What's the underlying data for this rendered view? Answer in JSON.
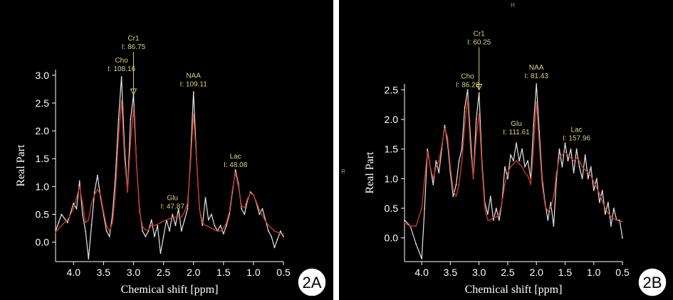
{
  "figure": {
    "divider_color": "#ffffff",
    "background": "#000000",
    "axis_color": "#ffffff",
    "measured_color": "#e6e6e6",
    "fit_color": "#c0392b",
    "annotation_color": "#d9d27a"
  },
  "chart_data": [
    {
      "type": "line",
      "panel_label": "2A",
      "xlabel": "Chemical shift [ppm]",
      "ylabel": "Real Part",
      "xlim": [
        4.3,
        0.5
      ],
      "ylim": [
        -0.35,
        3.1
      ],
      "x_ticks": [
        "4.0",
        "3.5",
        "3.0",
        "2.5",
        "2.0",
        "1.5",
        "1.0",
        "0.5"
      ],
      "y_ticks": [
        "3.0",
        "2.5",
        "2.0",
        "1.5",
        "1.0",
        "0.5",
        "0.0"
      ],
      "y_tick_values": [
        3.0,
        2.5,
        2.0,
        1.5,
        1.0,
        0.5,
        0.0
      ],
      "x_tick_values": [
        4.0,
        3.5,
        3.0,
        2.5,
        2.0,
        1.5,
        1.0,
        0.5
      ],
      "grid": false,
      "annotations": [
        {
          "name": "Cho",
          "value": "I: 108.16",
          "ppm": 3.2,
          "y": 2.97
        },
        {
          "name": "Cr1",
          "value": "I: 86.75",
          "ppm": 3.0,
          "y": 2.6,
          "arrow": true
        },
        {
          "name": "NAA",
          "value": "I: 109.11",
          "ppm": 2.0,
          "y": 2.7
        },
        {
          "name": "Glu",
          "value": "I: 47.87",
          "ppm": 2.35,
          "y": 0.5
        },
        {
          "name": "Lac",
          "value": "I: 48.08",
          "ppm": 1.3,
          "y": 1.25
        }
      ],
      "series": [
        {
          "role": "measured",
          "x": [
            4.3,
            4.2,
            4.1,
            4.0,
            3.95,
            3.9,
            3.85,
            3.8,
            3.75,
            3.7,
            3.65,
            3.6,
            3.55,
            3.5,
            3.45,
            3.4,
            3.35,
            3.3,
            3.25,
            3.2,
            3.15,
            3.1,
            3.05,
            3.0,
            2.95,
            2.9,
            2.85,
            2.8,
            2.75,
            2.7,
            2.65,
            2.6,
            2.55,
            2.5,
            2.45,
            2.4,
            2.35,
            2.3,
            2.25,
            2.2,
            2.15,
            2.1,
            2.05,
            2.0,
            1.95,
            1.9,
            1.85,
            1.8,
            1.75,
            1.7,
            1.65,
            1.6,
            1.55,
            1.5,
            1.45,
            1.4,
            1.35,
            1.3,
            1.25,
            1.2,
            1.15,
            1.1,
            1.05,
            1.0,
            0.95,
            0.9,
            0.85,
            0.8,
            0.75,
            0.7,
            0.65,
            0.6,
            0.55,
            0.5
          ],
          "y": [
            0.2,
            0.5,
            0.35,
            0.7,
            0.6,
            1.1,
            0.5,
            0.2,
            -0.3,
            0.3,
            0.9,
            1.2,
            0.8,
            0.5,
            0.2,
            0.1,
            0.5,
            1.2,
            2.2,
            2.97,
            1.7,
            0.9,
            2.2,
            2.65,
            1.4,
            0.6,
            0.2,
            0.1,
            0.2,
            0.4,
            0.1,
            0.3,
            -0.2,
            0.1,
            0.4,
            0.2,
            0.5,
            0.3,
            0.6,
            0.2,
            0.4,
            0.6,
            1.5,
            2.7,
            1.5,
            0.6,
            0.3,
            0.8,
            0.4,
            0.5,
            0.3,
            0.2,
            0.3,
            0.15,
            0.3,
            0.5,
            0.9,
            1.3,
            1.05,
            0.6,
            0.5,
            0.75,
            0.9,
            0.85,
            0.7,
            0.5,
            0.6,
            0.4,
            0.2,
            0.1,
            -0.1,
            0.05,
            0.2,
            0.1
          ]
        },
        {
          "role": "fit",
          "x": [
            4.3,
            4.2,
            4.1,
            4.0,
            3.95,
            3.9,
            3.85,
            3.8,
            3.75,
            3.7,
            3.65,
            3.6,
            3.55,
            3.5,
            3.45,
            3.4,
            3.35,
            3.3,
            3.25,
            3.2,
            3.15,
            3.1,
            3.05,
            3.0,
            2.95,
            2.9,
            2.85,
            2.8,
            2.75,
            2.7,
            2.65,
            2.6,
            2.55,
            2.5,
            2.45,
            2.4,
            2.35,
            2.3,
            2.25,
            2.2,
            2.15,
            2.1,
            2.05,
            2.0,
            1.95,
            1.9,
            1.85,
            1.8,
            1.75,
            1.7,
            1.65,
            1.6,
            1.55,
            1.5,
            1.45,
            1.4,
            1.35,
            1.3,
            1.25,
            1.2,
            1.15,
            1.1,
            1.05,
            1.0,
            0.95,
            0.9,
            0.85,
            0.8,
            0.75,
            0.7,
            0.65,
            0.6,
            0.55,
            0.5
          ],
          "y": [
            0.18,
            0.3,
            0.4,
            0.6,
            0.8,
            1.0,
            0.7,
            0.35,
            0.4,
            0.7,
            0.85,
            0.95,
            0.85,
            0.55,
            0.3,
            0.2,
            0.35,
            0.9,
            1.9,
            2.55,
            1.5,
            0.9,
            1.8,
            2.4,
            1.4,
            0.55,
            0.28,
            0.22,
            0.22,
            0.3,
            0.3,
            0.32,
            0.35,
            0.38,
            0.4,
            0.42,
            0.44,
            0.45,
            0.46,
            0.45,
            0.55,
            0.7,
            1.4,
            2.3,
            1.5,
            0.6,
            0.35,
            0.3,
            0.28,
            0.25,
            0.22,
            0.2,
            0.2,
            0.25,
            0.35,
            0.55,
            0.95,
            1.25,
            1.0,
            0.65,
            0.62,
            0.78,
            0.88,
            0.85,
            0.72,
            0.58,
            0.48,
            0.38,
            0.3,
            0.25,
            0.2,
            0.18,
            0.15,
            0.15
          ]
        }
      ]
    },
    {
      "type": "line",
      "panel_label": "2B",
      "xlabel": "Chemical shift [ppm]",
      "ylabel": "Real Part",
      "xlim": [
        4.3,
        0.5
      ],
      "ylim": [
        -0.4,
        2.6
      ],
      "x_ticks": [
        "4.0",
        "3.5",
        "3.0",
        "2.5",
        "2.0",
        "1.5",
        "1.0",
        "0.5"
      ],
      "y_ticks": [
        "2.5",
        "2.0",
        "1.5",
        "1.0",
        "0.5",
        "0.0"
      ],
      "y_tick_values": [
        2.5,
        2.0,
        1.5,
        1.0,
        0.5,
        0.0
      ],
      "x_tick_values": [
        4.0,
        3.5,
        3.0,
        2.5,
        2.0,
        1.5,
        1.0,
        0.5
      ],
      "grid": false,
      "side_marks": {
        "top": "H",
        "left": "R"
      },
      "annotations": [
        {
          "name": "Cho",
          "value": "I: 86.23",
          "ppm": 3.2,
          "y": 2.45
        },
        {
          "name": "Cr1",
          "value": "I: 60.25",
          "ppm": 3.0,
          "y": 2.45,
          "arrow": true
        },
        {
          "name": "NAA",
          "value": "I: 81.43",
          "ppm": 2.0,
          "y": 2.6
        },
        {
          "name": "Glu",
          "value": "I: 111.61",
          "ppm": 2.35,
          "y": 1.65
        },
        {
          "name": "Lac",
          "value": "I: 157.96",
          "ppm": 1.3,
          "y": 1.55
        }
      ],
      "series": [
        {
          "role": "measured",
          "x": [
            4.3,
            4.2,
            4.1,
            4.0,
            3.95,
            3.9,
            3.85,
            3.8,
            3.75,
            3.7,
            3.65,
            3.6,
            3.55,
            3.5,
            3.45,
            3.4,
            3.35,
            3.3,
            3.25,
            3.2,
            3.15,
            3.1,
            3.05,
            3.0,
            2.95,
            2.9,
            2.85,
            2.8,
            2.75,
            2.7,
            2.65,
            2.6,
            2.55,
            2.5,
            2.45,
            2.4,
            2.35,
            2.3,
            2.25,
            2.2,
            2.15,
            2.1,
            2.05,
            2.0,
            1.95,
            1.9,
            1.85,
            1.8,
            1.75,
            1.7,
            1.65,
            1.6,
            1.55,
            1.5,
            1.45,
            1.4,
            1.35,
            1.3,
            1.25,
            1.2,
            1.15,
            1.1,
            1.05,
            1.0,
            0.95,
            0.9,
            0.85,
            0.8,
            0.75,
            0.7,
            0.65,
            0.6,
            0.55,
            0.5
          ],
          "y": [
            0.3,
            0.2,
            -0.1,
            -0.35,
            0.5,
            1.5,
            1.2,
            0.9,
            1.3,
            1.1,
            1.5,
            1.9,
            1.6,
            1.1,
            0.7,
            0.9,
            1.3,
            1.5,
            2.2,
            2.5,
            1.7,
            1.0,
            2.0,
            2.45,
            1.3,
            0.6,
            0.4,
            0.7,
            0.3,
            0.5,
            0.3,
            0.6,
            1.2,
            1.0,
            1.4,
            1.3,
            1.6,
            1.3,
            1.5,
            1.2,
            1.3,
            1.0,
            1.9,
            2.6,
            1.8,
            1.0,
            0.6,
            0.3,
            0.6,
            0.2,
            1.0,
            1.5,
            1.2,
            1.6,
            1.3,
            1.5,
            1.1,
            1.5,
            1.2,
            1.0,
            1.4,
            1.0,
            1.2,
            0.8,
            1.0,
            0.6,
            0.8,
            0.4,
            0.6,
            0.2,
            0.5,
            0.3,
            0.3,
            0.0
          ]
        },
        {
          "role": "fit",
          "x": [
            4.3,
            4.2,
            4.1,
            4.0,
            3.95,
            3.9,
            3.85,
            3.8,
            3.75,
            3.7,
            3.65,
            3.6,
            3.55,
            3.5,
            3.45,
            3.4,
            3.35,
            3.3,
            3.25,
            3.2,
            3.15,
            3.1,
            3.05,
            3.0,
            2.95,
            2.9,
            2.85,
            2.8,
            2.75,
            2.7,
            2.65,
            2.6,
            2.55,
            2.5,
            2.45,
            2.4,
            2.35,
            2.3,
            2.25,
            2.2,
            2.15,
            2.1,
            2.05,
            2.0,
            1.95,
            1.9,
            1.85,
            1.8,
            1.75,
            1.7,
            1.65,
            1.6,
            1.55,
            1.5,
            1.45,
            1.4,
            1.35,
            1.3,
            1.25,
            1.2,
            1.15,
            1.1,
            1.05,
            1.0,
            0.95,
            0.9,
            0.85,
            0.8,
            0.75,
            0.7,
            0.65,
            0.6,
            0.55,
            0.5
          ],
          "y": [
            0.25,
            0.2,
            0.2,
            0.5,
            1.0,
            1.45,
            1.2,
            1.0,
            1.2,
            1.3,
            1.55,
            1.85,
            1.7,
            1.2,
            0.8,
            0.7,
            0.9,
            1.3,
            1.9,
            2.35,
            1.5,
            1.0,
            1.7,
            2.1,
            1.2,
            0.5,
            0.3,
            0.3,
            0.35,
            0.35,
            0.4,
            0.6,
            0.9,
            1.1,
            1.2,
            1.25,
            1.3,
            1.25,
            1.2,
            1.1,
            1.05,
            0.9,
            1.5,
            2.3,
            1.6,
            0.9,
            0.55,
            0.45,
            0.5,
            0.7,
            1.1,
            1.35,
            1.4,
            1.45,
            1.4,
            1.35,
            1.3,
            1.35,
            1.3,
            1.2,
            1.15,
            1.1,
            1.05,
            0.95,
            0.85,
            0.75,
            0.62,
            0.5,
            0.42,
            0.36,
            0.32,
            0.3,
            0.28,
            0.28
          ]
        }
      ]
    }
  ]
}
